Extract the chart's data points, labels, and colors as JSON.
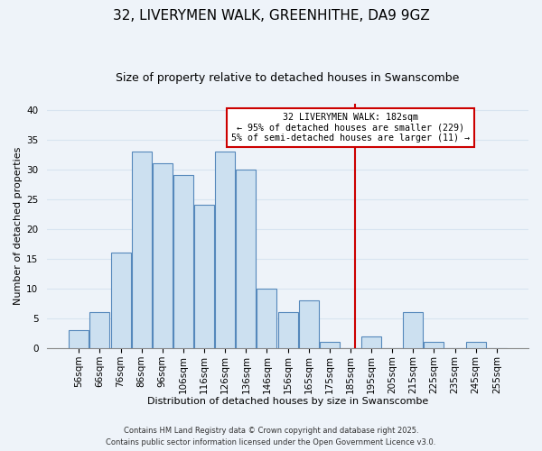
{
  "title": "32, LIVERYMEN WALK, GREENHITHE, DA9 9GZ",
  "subtitle": "Size of property relative to detached houses in Swanscombe",
  "xlabel": "Distribution of detached houses by size in Swanscombe",
  "ylabel": "Number of detached properties",
  "bin_labels": [
    "56sqm",
    "66sqm",
    "76sqm",
    "86sqm",
    "96sqm",
    "106sqm",
    "116sqm",
    "126sqm",
    "136sqm",
    "146sqm",
    "156sqm",
    "165sqm",
    "175sqm",
    "185sqm",
    "195sqm",
    "205sqm",
    "215sqm",
    "225sqm",
    "235sqm",
    "245sqm",
    "255sqm"
  ],
  "bar_values": [
    3,
    6,
    16,
    33,
    31,
    29,
    24,
    33,
    30,
    10,
    6,
    8,
    1,
    0,
    2,
    0,
    6,
    1,
    0,
    1,
    0
  ],
  "bar_color": "#cce0f0",
  "bar_edge_color": "#5588bb",
  "vline_color": "#cc0000",
  "annotation_text": "32 LIVERYMEN WALK: 182sqm\n← 95% of detached houses are smaller (229)\n5% of semi-detached houses are larger (11) →",
  "annotation_box_color": "#ffffff",
  "annotation_box_edge_color": "#cc0000",
  "ylim": [
    0,
    41
  ],
  "yticks": [
    0,
    5,
    10,
    15,
    20,
    25,
    30,
    35,
    40
  ],
  "footer": "Contains HM Land Registry data © Crown copyright and database right 2025.\nContains public sector information licensed under the Open Government Licence v3.0.",
  "bg_color": "#eef3f9",
  "grid_color": "#d8e4f0",
  "title_fontsize": 11,
  "subtitle_fontsize": 9,
  "axis_label_fontsize": 8,
  "tick_fontsize": 7.5,
  "footer_fontsize": 6
}
